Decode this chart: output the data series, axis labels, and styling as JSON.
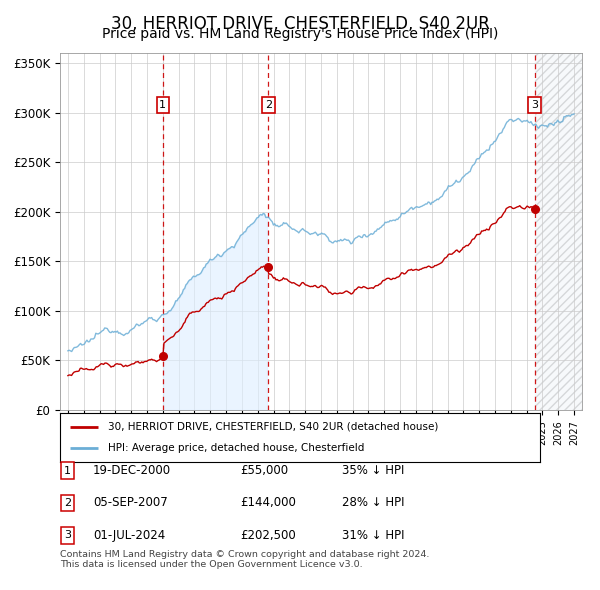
{
  "title": "30, HERRIOT DRIVE, CHESTERFIELD, S40 2UR",
  "subtitle": "Price paid vs. HM Land Registry's House Price Index (HPI)",
  "xlim": [
    1994.5,
    2027.5
  ],
  "ylim": [
    0,
    360000
  ],
  "yticks": [
    0,
    50000,
    100000,
    150000,
    200000,
    250000,
    300000,
    350000
  ],
  "ytick_labels": [
    "£0",
    "£50K",
    "£100K",
    "£150K",
    "£200K",
    "£250K",
    "£300K",
    "£350K"
  ],
  "transactions": [
    {
      "date_str": "19-DEC-2000",
      "year": 2001.0,
      "price": 55000,
      "label": "1",
      "pct": "35%"
    },
    {
      "date_str": "05-SEP-2007",
      "year": 2007.67,
      "price": 144000,
      "label": "2",
      "pct": "28%"
    },
    {
      "date_str": "01-JUL-2024",
      "year": 2024.5,
      "price": 202500,
      "label": "3",
      "pct": "31%"
    }
  ],
  "legend_entries": [
    "30, HERRIOT DRIVE, CHESTERFIELD, S40 2UR (detached house)",
    "HPI: Average price, detached house, Chesterfield"
  ],
  "footnote": "Contains HM Land Registry data © Crown copyright and database right 2024.\nThis data is licensed under the Open Government Licence v3.0.",
  "hpi_line_color": "#6baed6",
  "price_line_color": "#c00000",
  "marker_color": "#c00000",
  "transaction_box_color": "#cc0000",
  "background_color": "#ffffff",
  "grid_color": "#cccccc",
  "title_fontsize": 12,
  "subtitle_fontsize": 10,
  "tick_fontsize": 8.5,
  "blue_fill_start": 2001.0,
  "blue_fill_end": 2007.67,
  "future_start": 2024.5
}
